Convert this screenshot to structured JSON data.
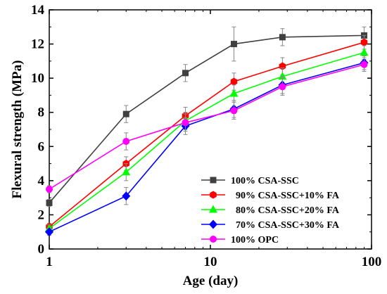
{
  "chart_data": {
    "type": "line",
    "title": "",
    "xlabel": "Age (day)",
    "ylabel": "Flexural strength (MPa)",
    "xscale": "log",
    "xlim": [
      1,
      100
    ],
    "ylim": [
      0,
      14
    ],
    "xticks": [
      1,
      10,
      100
    ],
    "xtick_labels": [
      "1",
      "10",
      "100"
    ],
    "yticks": [
      0,
      2,
      4,
      6,
      8,
      10,
      12,
      14
    ],
    "ytick_labels": [
      "0",
      "2",
      "4",
      "6",
      "8",
      "10",
      "12",
      "14"
    ],
    "grid": false,
    "legend_position": "bottom-right",
    "x": [
      1,
      3,
      7,
      14,
      28,
      90
    ],
    "series": [
      {
        "name": "100% CSA-SSC",
        "color": "#404040",
        "marker": "square",
        "values": [
          2.7,
          7.9,
          10.3,
          12.0,
          12.4,
          12.5
        ],
        "errors": [
          0.2,
          0.5,
          0.5,
          1.0,
          0.5,
          0.5
        ]
      },
      {
        "name": "  90% CSA-SSC+10% FA",
        "color": "#ff0000",
        "marker": "hexagon",
        "values": [
          1.3,
          5.0,
          7.8,
          9.8,
          10.7,
          12.1
        ],
        "errors": [
          0.2,
          0.4,
          0.5,
          0.5,
          0.5,
          0.4
        ]
      },
      {
        "name": "  80% CSA-SSC+20% FA",
        "color": "#00ff00",
        "marker": "triangle",
        "values": [
          1.2,
          4.5,
          7.5,
          9.1,
          10.1,
          11.5
        ],
        "errors": [
          0.2,
          0.5,
          0.5,
          0.5,
          0.5,
          0.4
        ]
      },
      {
        "name": "  70% CSA-SSC+30% FA",
        "color": "#0000ff",
        "marker": "diamond",
        "values": [
          1.0,
          3.1,
          7.2,
          8.2,
          9.6,
          10.9
        ],
        "errors": [
          0.2,
          0.5,
          0.5,
          0.5,
          0.5,
          0.4
        ]
      },
      {
        "name": "100% OPC",
        "color": "#ff00ff",
        "marker": "circle",
        "values": [
          3.5,
          6.3,
          7.4,
          8.1,
          9.5,
          10.8
        ],
        "errors": [
          0.2,
          0.5,
          0.5,
          0.5,
          0.5,
          0.4
        ]
      }
    ]
  }
}
